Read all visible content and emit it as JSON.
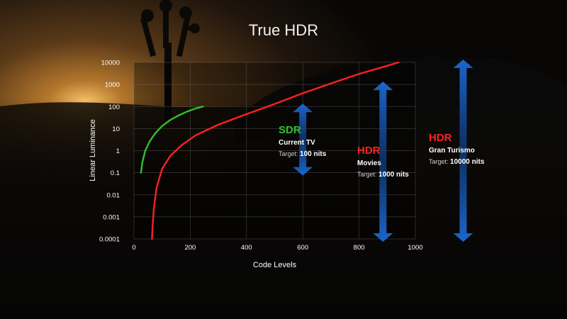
{
  "title": "True HDR",
  "colors": {
    "sdr": "#2fc12f",
    "hdr": "#ff2020",
    "arrow": "#1a62c9"
  },
  "chart_data": {
    "type": "line",
    "title": "True HDR",
    "xlabel": "Code Levels",
    "ylabel": "Linear Luminance",
    "xlim": [
      0,
      1000
    ],
    "ylim": [
      0.0001,
      10000
    ],
    "yscale": "log",
    "grid": true,
    "xticks": [
      "0",
      "200",
      "400",
      "600",
      "800",
      "1000"
    ],
    "yticks": [
      "0.0001",
      "0.001",
      "0.01",
      "0.1",
      "1",
      "10",
      "100",
      "1000",
      "10000"
    ],
    "series": [
      {
        "name": "SDR",
        "color": "#2fc12f",
        "x": [
          25,
          30,
          40,
          55,
          75,
          100,
          130,
          160,
          190,
          220,
          245
        ],
        "y": [
          0.1,
          0.3,
          1.0,
          2.5,
          6,
          13,
          25,
          40,
          60,
          82,
          100
        ]
      },
      {
        "name": "HDR",
        "color": "#ff2020",
        "x": [
          64,
          66,
          70,
          80,
          100,
          130,
          170,
          220,
          300,
          400,
          500,
          600,
          700,
          800,
          900,
          940
        ],
        "y": [
          0.0001,
          0.0003,
          0.002,
          0.02,
          0.15,
          0.6,
          1.8,
          5,
          15,
          45,
          130,
          400,
          1100,
          3000,
          7000,
          10000
        ]
      }
    ],
    "ranges": [
      {
        "label": "SDR",
        "x": 600,
        "min": 0.1,
        "max": 100
      },
      {
        "label": "HDR",
        "x": 885,
        "min": 0.0001,
        "max": 1000
      },
      {
        "label": "HDR",
        "x": 1170,
        "min": 0.0001,
        "max": 10000
      }
    ]
  },
  "annotations": [
    {
      "head": "SDR",
      "sub": "Current TV",
      "tgt_prefix": "Target:",
      "tgt_value": "100 nits",
      "color": "#2fc12f"
    },
    {
      "head": "HDR",
      "sub": "Movies",
      "tgt_prefix": "Target:",
      "tgt_value": "1000 nits",
      "color": "#ff2020"
    },
    {
      "head": "HDR",
      "sub": "Gran Turismo",
      "tgt_prefix": "Target:",
      "tgt_value": "10000 nits",
      "color": "#ff2020"
    }
  ]
}
